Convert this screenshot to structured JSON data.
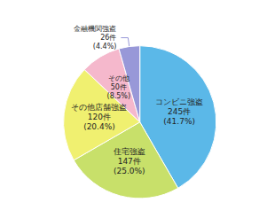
{
  "chart_data": {
    "type": "pie",
    "categories": [
      "コンビニ強盗",
      "住宅強盗",
      "その他店舗強盗",
      "その他",
      "金融機関強盗"
    ],
    "values": [
      245,
      147,
      120,
      50,
      26
    ],
    "value_labels": [
      "245件\n(41.7%)",
      "147件\n(25.0%)",
      "120件\n(20.4%)",
      "50件\n(8.5%)",
      "26件\n(4.4%)"
    ],
    "colors": [
      "#5bb8e8",
      "#c8e06a",
      "#f0f070",
      "#f5b8cc",
      "#9898d8"
    ],
    "data_labels": true
  }
}
